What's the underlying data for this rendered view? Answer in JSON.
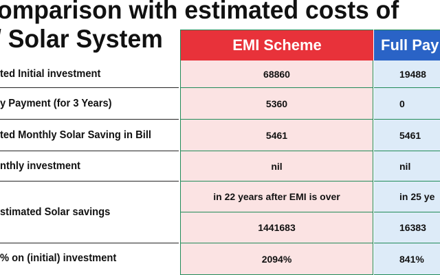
{
  "title": {
    "line1": "omparison with estimated costs of",
    "line2": "/ Solar System"
  },
  "colors": {
    "emi_header": "#e8323a",
    "full_header": "#2a63c6",
    "emi_cell_bg": "#fbe3e3",
    "full_cell_bg": "#ddebf8",
    "grid_line": "#1f8a57"
  },
  "table": {
    "headers": {
      "emi": "EMI Scheme",
      "full": "Full Pay"
    },
    "rows": [
      {
        "label": "ted Initial investment",
        "emi": "68860",
        "full": "19488"
      },
      {
        "label": "y Payment (for 3 Years)",
        "emi": "5360",
        "full": "0"
      },
      {
        "label": "ted Monthly Solar Saving in Bill",
        "emi": "5461",
        "full": "5461"
      },
      {
        "label": "nthly investment",
        "emi": "nil",
        "full": "nil"
      },
      {
        "label": "stimated Solar savings",
        "emi_note": "in 22 years after EMI is over",
        "full_note": "in 25 ye",
        "emi": "1441683",
        "full": "16383"
      },
      {
        "label": "% on (initial) investment",
        "emi": "2094%",
        "full": "841%"
      }
    ]
  }
}
